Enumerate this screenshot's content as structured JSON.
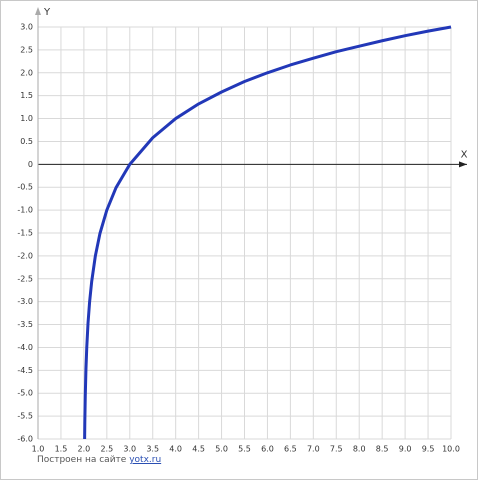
{
  "chart_data": {
    "type": "line",
    "x_label": "X",
    "y_label": "Y",
    "x": [
      2.016,
      2.02,
      2.03,
      2.045,
      2.0625,
      2.09,
      2.125,
      2.17,
      2.25,
      2.35,
      2.5,
      2.7,
      3,
      3.5,
      4,
      4.5,
      5,
      5.5,
      6,
      6.5,
      7,
      7.5,
      8,
      8.5,
      9,
      9.5,
      10
    ],
    "series": [
      {
        "color": "#2238b8",
        "values": [
          -6,
          -5.64,
          -5.06,
          -4.47,
          -4,
          -3.47,
          -3,
          -2.56,
          -2,
          -1.51,
          -1,
          -0.51,
          0,
          0.58,
          1,
          1.32,
          1.58,
          1.81,
          2,
          2.17,
          2.32,
          2.46,
          2.58,
          2.7,
          2.81,
          2.91,
          3
        ]
      }
    ],
    "xlim": [
      1,
      10
    ],
    "xticks": [
      {
        "value": 1,
        "label": "1.0"
      },
      1.5,
      {
        "value": 2,
        "label": "2.0"
      },
      2.5,
      {
        "value": 3,
        "label": "3.0"
      },
      3.5,
      {
        "value": 4,
        "label": "4.0"
      },
      4.5,
      {
        "value": 5,
        "label": "5.0"
      },
      5.5,
      {
        "value": 6,
        "label": "6.0"
      },
      6.5,
      {
        "value": 7,
        "label": "7.0"
      },
      7.5,
      {
        "value": 8,
        "label": "8.0"
      },
      8.5,
      {
        "value": 9,
        "label": "9.0"
      },
      9.5,
      {
        "value": 10,
        "label": "10.0"
      }
    ],
    "ylim": [
      -6,
      3
    ],
    "yticks": [
      {
        "value": 3,
        "label": "3.0"
      },
      2.5,
      {
        "value": 2,
        "label": "2.0"
      },
      1.5,
      {
        "value": 1,
        "label": "1.0"
      },
      0.5,
      0,
      -0.5,
      {
        "value": -1,
        "label": "-1.0"
      },
      -1.5,
      {
        "value": -2,
        "label": "-2.0"
      },
      -2.5,
      {
        "value": -3,
        "label": "-3.0"
      },
      -3.5,
      {
        "value": -4,
        "label": "-4.0"
      },
      -4.5,
      {
        "value": -5,
        "label": "-5.0"
      },
      -5.5,
      {
        "value": -6,
        "label": "-6.0"
      }
    ],
    "grid": true
  },
  "footer": {
    "text": "Построен на сайте",
    "link": "yotx.ru"
  }
}
